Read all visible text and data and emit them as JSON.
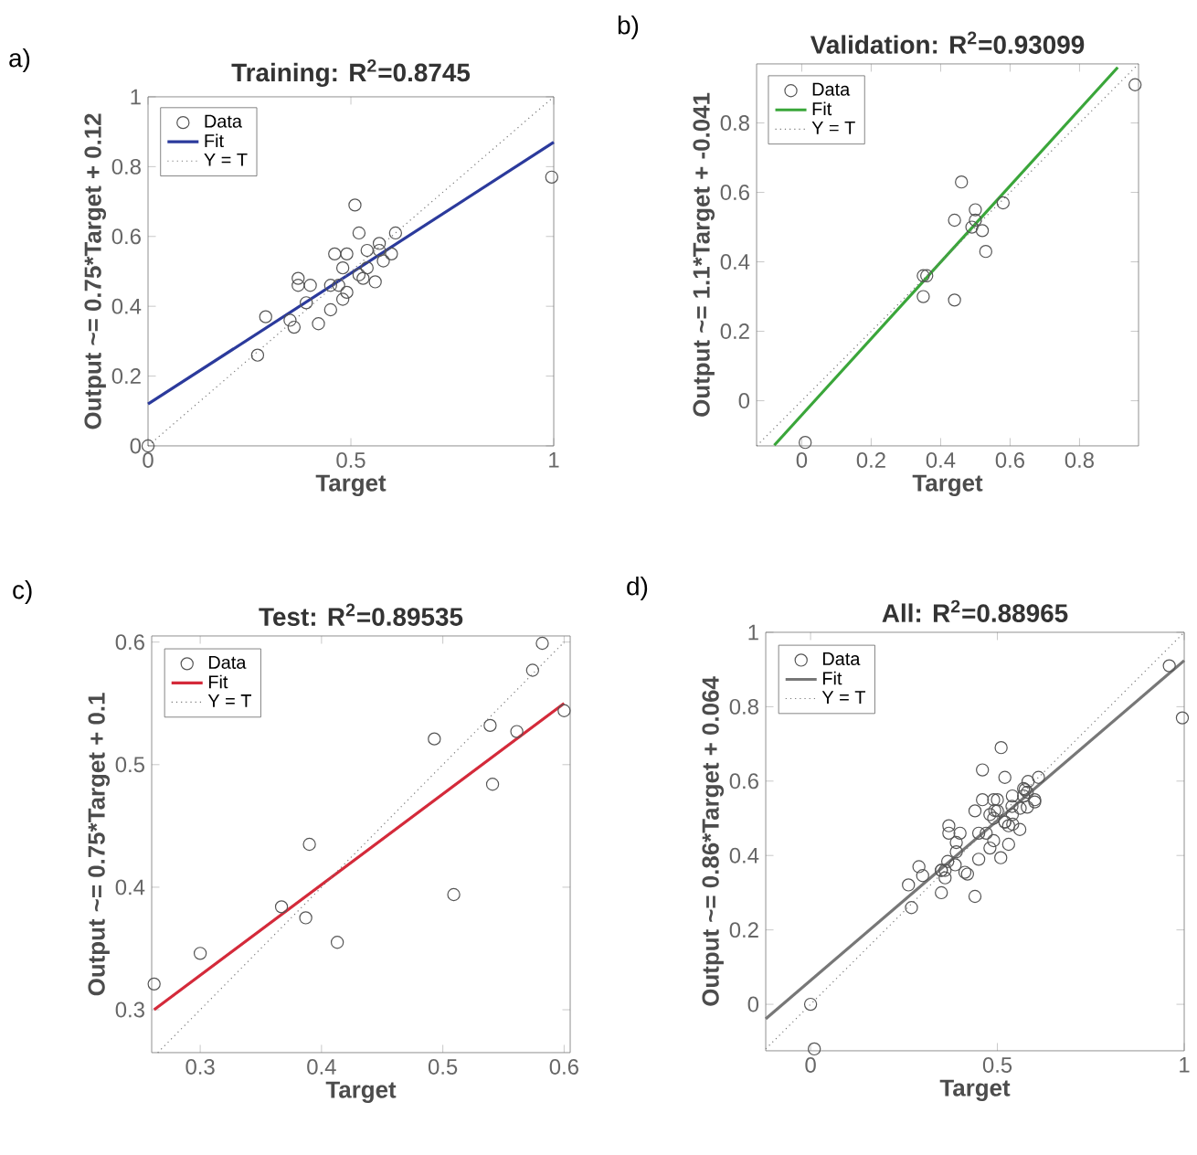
{
  "chart_data": [
    {
      "type": "scatter",
      "title": "Training: R$^{2}$=0.8745",
      "xlabel": "Target",
      "ylabel": "Output ~= 0.75*Target + 0.12",
      "annotations": [
        "a)"
      ],
      "xlim": [
        0,
        1
      ],
      "ylim": [
        0,
        1
      ],
      "xticks": [
        0,
        0.5,
        1
      ],
      "yticks": [
        0,
        0.2,
        0.4,
        0.6,
        0.8,
        1
      ],
      "legend": "top left",
      "grid": false,
      "series": [
        {
          "name": "Data",
          "marker": "circle",
          "color": "#555555",
          "x": [
            0,
            0.27,
            0.29,
            0.37,
            0.37,
            0.36,
            0.35,
            0.42,
            0.45,
            0.46,
            0.51,
            0.52,
            0.61,
            0.57,
            0.54,
            0.48,
            0.49,
            0.56,
            0.53,
            0.49,
            0.58,
            0.45,
            0.47,
            0.52,
            0.54,
            0.57,
            0.6,
            0.48,
            0.4,
            0.39,
            0.995
          ],
          "values": [
            0,
            0.26,
            0.37,
            0.48,
            0.46,
            0.34,
            0.36,
            0.35,
            0.46,
            0.55,
            0.69,
            0.61,
            0.61,
            0.56,
            0.51,
            0.51,
            0.44,
            0.47,
            0.48,
            0.55,
            0.53,
            0.39,
            0.46,
            0.49,
            0.56,
            0.58,
            0.55,
            0.42,
            0.46,
            0.41,
            0.77
          ]
        },
        {
          "name": "Fit",
          "type": "line",
          "line_style": "solid",
          "color": "#2b3a9c",
          "x": [
            0,
            1
          ],
          "values": [
            0.12,
            0.87
          ]
        },
        {
          "name": "Y = T",
          "type": "line",
          "line_style": "dotted",
          "color": "#777777",
          "x": [
            0,
            1
          ],
          "values": [
            0,
            1
          ]
        }
      ]
    },
    {
      "type": "scatter",
      "title": "Validation: R$^{2}$=0.93099",
      "xlabel": "Target",
      "ylabel": "Output ~= 1.1*Target + -0.041",
      "annotations": [
        "b)"
      ],
      "xlim": [
        -0.13,
        0.97
      ],
      "ylim": [
        -0.13,
        0.97
      ],
      "xticks": [
        0,
        0.2,
        0.4,
        0.6,
        0.8
      ],
      "yticks": [
        0,
        0.2,
        0.4,
        0.6,
        0.8
      ],
      "legend": "top left",
      "grid": false,
      "series": [
        {
          "name": "Data",
          "marker": "circle",
          "color": "#555555",
          "x": [
            0.01,
            0.96,
            0.35,
            0.36,
            0.35,
            0.44,
            0.44,
            0.46,
            0.5,
            0.49,
            0.5,
            0.52,
            0.53,
            0.58
          ],
          "values": [
            -0.12,
            0.91,
            0.36,
            0.36,
            0.3,
            0.29,
            0.52,
            0.63,
            0.55,
            0.5,
            0.52,
            0.49,
            0.43,
            0.57
          ]
        },
        {
          "name": "Fit",
          "type": "line",
          "line_style": "solid",
          "color": "#3aa63a",
          "x": [
            -0.079,
            0.91
          ],
          "values": [
            -0.128,
            0.96
          ]
        },
        {
          "name": "Y = T",
          "type": "line",
          "line_style": "dotted",
          "color": "#777777",
          "x": [
            -0.13,
            0.97
          ],
          "values": [
            -0.13,
            0.97
          ]
        }
      ]
    },
    {
      "type": "scatter",
      "title": "Test: R$^{2}$=0.89535",
      "xlabel": "Target",
      "ylabel": "Output ~= 0.75*Target + 0.1",
      "annotations": [
        "c)"
      ],
      "xlim": [
        0.26,
        0.605
      ],
      "ylim": [
        0.265,
        0.605
      ],
      "xticks": [
        0.3,
        0.4,
        0.5,
        0.6
      ],
      "yticks": [
        0.3,
        0.4,
        0.5,
        0.6
      ],
      "legend": "top left",
      "grid": false,
      "series": [
        {
          "name": "Data",
          "marker": "circle",
          "color": "#555555",
          "x": [
            0.262,
            0.3,
            0.367,
            0.387,
            0.39,
            0.413,
            0.493,
            0.509,
            0.539,
            0.541,
            0.561,
            0.574,
            0.582,
            0.6
          ],
          "values": [
            0.321,
            0.346,
            0.384,
            0.375,
            0.435,
            0.355,
            0.521,
            0.394,
            0.532,
            0.484,
            0.527,
            0.577,
            0.599,
            0.544
          ]
        },
        {
          "name": "Fit",
          "type": "line",
          "line_style": "solid",
          "color": "#d42a3a",
          "x": [
            0.262,
            0.6
          ],
          "values": [
            0.3,
            0.55
          ]
        },
        {
          "name": "Y = T",
          "type": "line",
          "line_style": "dotted",
          "color": "#777777",
          "x": [
            0.265,
            0.6
          ],
          "values": [
            0.265,
            0.6
          ]
        }
      ]
    },
    {
      "type": "scatter",
      "title": "All: R$^{2}$=0.88965",
      "xlabel": "Target",
      "ylabel": "Output ~= 0.86*Target + 0.064",
      "annotations": [
        "d)"
      ],
      "xlim": [
        -0.12,
        1
      ],
      "ylim": [
        -0.125,
        1
      ],
      "xticks": [
        0,
        0.5,
        1
      ],
      "yticks": [
        0,
        0.2,
        0.4,
        0.6,
        0.8,
        1
      ],
      "legend": "top left",
      "grid": false,
      "series": [
        {
          "name": "Data",
          "marker": "circle",
          "color": "#555555",
          "x": [
            0,
            0.27,
            0.29,
            0.37,
            0.37,
            0.36,
            0.35,
            0.42,
            0.45,
            0.46,
            0.51,
            0.52,
            0.61,
            0.57,
            0.54,
            0.48,
            0.49,
            0.56,
            0.53,
            0.49,
            0.58,
            0.45,
            0.47,
            0.52,
            0.54,
            0.57,
            0.6,
            0.48,
            0.4,
            0.39,
            0.995,
            0.01,
            0.96,
            0.35,
            0.36,
            0.35,
            0.44,
            0.44,
            0.46,
            0.5,
            0.49,
            0.5,
            0.52,
            0.53,
            0.58,
            0.262,
            0.3,
            0.367,
            0.387,
            0.39,
            0.413,
            0.493,
            0.509,
            0.539,
            0.541,
            0.561,
            0.574,
            0.582,
            0.6
          ],
          "values": [
            0,
            0.26,
            0.37,
            0.48,
            0.46,
            0.34,
            0.36,
            0.35,
            0.46,
            0.55,
            0.69,
            0.61,
            0.61,
            0.56,
            0.51,
            0.51,
            0.44,
            0.47,
            0.48,
            0.55,
            0.53,
            0.39,
            0.46,
            0.49,
            0.56,
            0.58,
            0.55,
            0.42,
            0.46,
            0.41,
            0.77,
            -0.12,
            0.91,
            0.36,
            0.36,
            0.3,
            0.29,
            0.52,
            0.63,
            0.55,
            0.5,
            0.52,
            0.49,
            0.43,
            0.57,
            0.321,
            0.346,
            0.384,
            0.375,
            0.435,
            0.355,
            0.521,
            0.394,
            0.532,
            0.484,
            0.527,
            0.577,
            0.599,
            0.544
          ]
        },
        {
          "name": "Fit",
          "type": "line",
          "line_style": "solid",
          "color": "#777777",
          "x": [
            -0.12,
            1
          ],
          "values": [
            -0.039,
            0.924
          ]
        },
        {
          "name": "Y = T",
          "type": "line",
          "line_style": "dotted",
          "color": "#777777",
          "x": [
            -0.12,
            1
          ],
          "values": [
            -0.12,
            1
          ]
        }
      ]
    }
  ]
}
